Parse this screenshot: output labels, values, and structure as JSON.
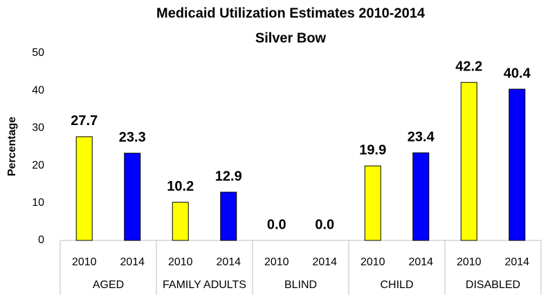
{
  "chart_data": {
    "type": "bar",
    "title": "Medicaid Utilization Estimates 2010-2014",
    "subtitle": "Silver Bow",
    "y_label": "Percentage",
    "categories": [
      "2010",
      "2014",
      "2010",
      "2014",
      "2010",
      "2014",
      "2010",
      "2014",
      "2010",
      "2014"
    ],
    "groups": [
      "AGED",
      "FAMILY ADULTS",
      "BLIND",
      "CHILD",
      "DISABLED"
    ],
    "values": [
      27.7,
      23.3,
      10.2,
      12.9,
      0,
      0,
      19.9,
      23.4,
      42.2,
      40.4
    ],
    "value_labels": [
      "27.7",
      "23.3",
      "10.2",
      "12.9",
      "0.0",
      "0.0",
      "19.9",
      "23.4",
      "42.2",
      "40.4"
    ],
    "colors": [
      "#ffff00",
      "#0000ff",
      "#ffff00",
      "#0000ff",
      "#ffff00",
      "#0000ff",
      "#ffff00",
      "#0000ff",
      "#ffff00",
      "#0000ff"
    ],
    "ylim": [
      0,
      50
    ],
    "yticks": [
      0,
      10,
      20,
      30,
      40,
      50
    ],
    "grid": false
  }
}
